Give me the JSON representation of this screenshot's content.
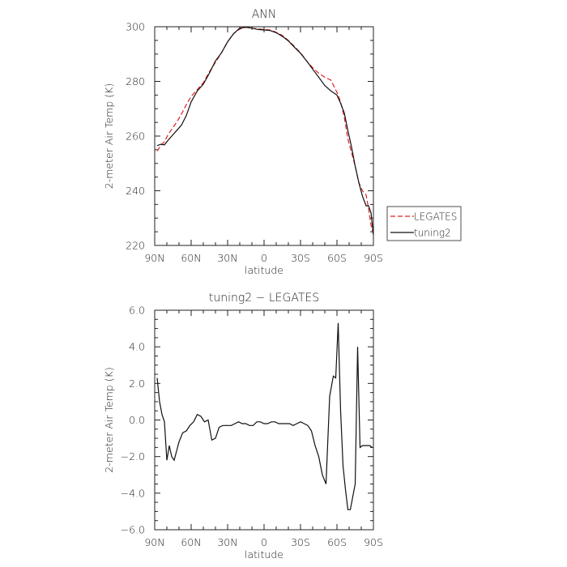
{
  "chart_data": [
    {
      "type": "line",
      "title": "ANN",
      "xlabel": "latitude",
      "ylabel": "2-meter Air Temp (K)",
      "xlim": [
        90,
        -90
      ],
      "ylim": [
        220,
        300
      ],
      "xticks": [
        90,
        60,
        30,
        0,
        -30,
        -60,
        -90
      ],
      "xtick_labels": [
        "90N",
        "60N",
        "30N",
        "0",
        "30S",
        "60S",
        "90S"
      ],
      "yticks": [
        220,
        240,
        260,
        280,
        300
      ],
      "ytick_labels": [
        "220",
        "240",
        "260",
        "280",
        "300"
      ],
      "legend": {
        "placement": "right",
        "entries": [
          "LEGATES",
          "tuning2"
        ]
      },
      "series": [
        {
          "name": "LEGATES",
          "color": "#e02020",
          "dash": "dashed",
          "x": [
            88,
            85,
            82,
            79,
            76,
            72,
            68,
            64,
            60,
            55,
            50,
            45,
            40,
            35,
            30,
            25,
            20,
            15,
            10,
            5,
            0,
            -5,
            -10,
            -15,
            -20,
            -25,
            -30,
            -35,
            -40,
            -45,
            -50,
            -55,
            -60,
            -63,
            -66,
            -69,
            -72,
            -75,
            -78,
            -81,
            -84,
            -86,
            -88,
            -90
          ],
          "y": [
            254.5,
            256.5,
            258,
            260.5,
            262.5,
            265,
            268,
            271.5,
            274.5,
            277,
            279.5,
            283.5,
            287,
            290.5,
            294.5,
            297.5,
            299.2,
            299.8,
            299.5,
            299.2,
            299,
            298.8,
            298,
            296.8,
            295,
            292.8,
            290.5,
            287.5,
            285,
            283,
            281.5,
            280.5,
            276,
            272.5,
            267,
            259,
            254,
            249,
            243,
            240,
            238.5,
            233.5,
            227.5,
            224
          ]
        },
        {
          "name": "tuning2",
          "color": "#111111",
          "dash": "solid",
          "x": [
            88,
            85,
            82,
            79,
            76,
            72,
            68,
            64,
            60,
            55,
            50,
            45,
            40,
            35,
            30,
            25,
            20,
            15,
            10,
            5,
            0,
            -5,
            -10,
            -15,
            -20,
            -25,
            -30,
            -35,
            -40,
            -45,
            -50,
            -55,
            -60,
            -63,
            -66,
            -69,
            -72,
            -75,
            -78,
            -81,
            -84,
            -86,
            -88,
            -90
          ],
          "y": [
            256.5,
            257,
            256.8,
            258.5,
            260,
            262,
            264,
            267.5,
            272.5,
            276.5,
            279,
            283,
            287.5,
            290.5,
            294.5,
            297.5,
            299.5,
            299.8,
            299.5,
            299,
            298.8,
            298.6,
            297.8,
            296.5,
            294.8,
            292.5,
            290.3,
            287.5,
            284.5,
            281.5,
            278.5,
            276.5,
            275,
            272,
            268.5,
            262,
            256,
            249,
            243,
            238,
            234.5,
            234.5,
            232,
            224
          ]
        }
      ]
    },
    {
      "type": "line",
      "title": "tuning2 − LEGATES",
      "xlabel": "latitude",
      "ylabel": "2-meter Air Temp (K)",
      "xlim": [
        90,
        -90
      ],
      "ylim": [
        -6,
        6
      ],
      "xticks": [
        90,
        60,
        30,
        0,
        -30,
        -60,
        -90
      ],
      "xtick_labels": [
        "90N",
        "60N",
        "30N",
        "0",
        "30S",
        "60S",
        "90S"
      ],
      "yticks": [
        -6,
        -4,
        -2,
        0,
        2,
        4,
        6
      ],
      "ytick_labels": [
        "−6.0",
        "−4.0",
        "−2.0",
        "0.0",
        "2.0",
        "4.0",
        "6.0"
      ],
      "series": [
        {
          "color": "#111111",
          "x": [
            88,
            86,
            84,
            82,
            80,
            78,
            76,
            74,
            72,
            70,
            67,
            64,
            61,
            58,
            55,
            52,
            49,
            46,
            43,
            40,
            37,
            34,
            30,
            27,
            24,
            21,
            18,
            15,
            12,
            9,
            6,
            3,
            0,
            -3,
            -6,
            -9,
            -12,
            -15,
            -18,
            -21,
            -24,
            -27,
            -30,
            -33,
            -36,
            -39,
            -42,
            -45,
            -48,
            -51,
            -54,
            -57,
            -59,
            -61,
            -63,
            -65,
            -67,
            -69,
            -71,
            -73,
            -75,
            -77,
            -79,
            -81,
            -83,
            -85,
            -87,
            -89
          ],
          "y": [
            2.3,
            1.0,
            0.3,
            -0.1,
            -2.2,
            -1.4,
            -2.0,
            -2.2,
            -1.7,
            -1.2,
            -0.7,
            -0.6,
            -0.3,
            -0.1,
            0.3,
            0.2,
            -0.1,
            0.0,
            -1.1,
            -1.0,
            -0.4,
            -0.3,
            -0.3,
            -0.3,
            -0.2,
            -0.1,
            -0.2,
            -0.2,
            -0.3,
            -0.3,
            -0.1,
            -0.1,
            -0.2,
            -0.2,
            -0.1,
            -0.1,
            -0.2,
            -0.2,
            -0.2,
            -0.2,
            -0.3,
            -0.2,
            -0.1,
            -0.2,
            -0.3,
            -0.6,
            -1.4,
            -2.0,
            -3.0,
            -3.5,
            1.3,
            2.4,
            2.3,
            5.3,
            0.5,
            -2.5,
            -3.8,
            -4.9,
            -4.9,
            -4.2,
            -3.5,
            4.0,
            -1.5,
            -1.4,
            -1.4,
            -1.4,
            -1.4,
            -1.5
          ]
        }
      ]
    }
  ]
}
